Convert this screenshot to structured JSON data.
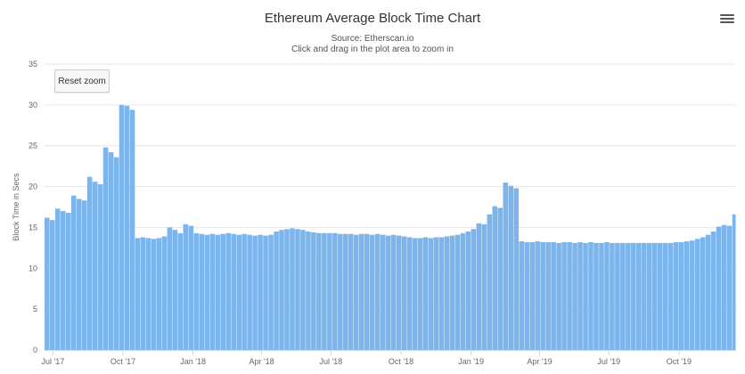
{
  "header": {
    "title": "Ethereum Average Block Time Chart",
    "source": "Source: Etherscan.io",
    "hint": "Click and drag in the plot area to zoom in"
  },
  "controls": {
    "reset_zoom_label": "Reset zoom",
    "menu_icon": "hamburger-menu-icon"
  },
  "colors": {
    "bar": "#7cb5ec",
    "grid": "#e6e6e6",
    "axis": "#ccd6eb"
  },
  "chart_data": {
    "type": "bar",
    "title": "Ethereum Average Block Time Chart",
    "subtitle": "Source: Etherscan.io",
    "ylabel": "Block Time in Secs",
    "xlabel": "",
    "ylim": [
      0,
      35
    ],
    "yticks": [
      0,
      5,
      10,
      15,
      20,
      25,
      30,
      35
    ],
    "x_start": "2017-06-20",
    "x_end": "2019-12-15",
    "x_ticks": [
      {
        "date": "2017-07-01",
        "label": "Jul '17"
      },
      {
        "date": "2017-10-01",
        "label": "Oct '17"
      },
      {
        "date": "2018-01-01",
        "label": "Jan '18"
      },
      {
        "date": "2018-04-01",
        "label": "Apr '18"
      },
      {
        "date": "2018-07-01",
        "label": "Jul '18"
      },
      {
        "date": "2018-10-01",
        "label": "Oct '18"
      },
      {
        "date": "2019-01-01",
        "label": "Jan '19"
      },
      {
        "date": "2019-04-01",
        "label": "Apr '19"
      },
      {
        "date": "2019-07-01",
        "label": "Jul '19"
      },
      {
        "date": "2019-10-01",
        "label": "Oct '19"
      }
    ],
    "grid": true,
    "legend": "none",
    "series": [
      {
        "values": [
          [
            "2017-06-20",
            16.2
          ],
          [
            "2017-06-27",
            15.9
          ],
          [
            "2017-07-04",
            17.3
          ],
          [
            "2017-07-11",
            17.0
          ],
          [
            "2017-07-18",
            16.8
          ],
          [
            "2017-07-25",
            18.9
          ],
          [
            "2017-08-01",
            18.5
          ],
          [
            "2017-08-08",
            18.3
          ],
          [
            "2017-08-15",
            21.2
          ],
          [
            "2017-08-22",
            20.6
          ],
          [
            "2017-08-29",
            20.3
          ],
          [
            "2017-09-05",
            24.8
          ],
          [
            "2017-09-12",
            24.2
          ],
          [
            "2017-09-19",
            23.6
          ],
          [
            "2017-09-26",
            30.0
          ],
          [
            "2017-10-03",
            29.9
          ],
          [
            "2017-10-10",
            29.4
          ],
          [
            "2017-10-17",
            13.7
          ],
          [
            "2017-10-24",
            13.8
          ],
          [
            "2017-10-31",
            13.7
          ],
          [
            "2017-11-07",
            13.6
          ],
          [
            "2017-11-14",
            13.7
          ],
          [
            "2017-11-21",
            13.9
          ],
          [
            "2017-11-28",
            15.0
          ],
          [
            "2017-12-05",
            14.7
          ],
          [
            "2017-12-12",
            14.3
          ],
          [
            "2017-12-19",
            15.4
          ],
          [
            "2017-12-26",
            15.2
          ],
          [
            "2018-01-02",
            14.3
          ],
          [
            "2018-01-09",
            14.2
          ],
          [
            "2018-01-16",
            14.1
          ],
          [
            "2018-01-23",
            14.2
          ],
          [
            "2018-01-30",
            14.1
          ],
          [
            "2018-02-06",
            14.2
          ],
          [
            "2018-02-13",
            14.3
          ],
          [
            "2018-02-20",
            14.2
          ],
          [
            "2018-02-27",
            14.1
          ],
          [
            "2018-03-06",
            14.2
          ],
          [
            "2018-03-13",
            14.1
          ],
          [
            "2018-03-20",
            14.0
          ],
          [
            "2018-03-27",
            14.1
          ],
          [
            "2018-04-03",
            14.0
          ],
          [
            "2018-04-10",
            14.1
          ],
          [
            "2018-04-17",
            14.5
          ],
          [
            "2018-04-24",
            14.7
          ],
          [
            "2018-05-01",
            14.8
          ],
          [
            "2018-05-08",
            14.9
          ],
          [
            "2018-05-15",
            14.8
          ],
          [
            "2018-05-22",
            14.7
          ],
          [
            "2018-05-29",
            14.5
          ],
          [
            "2018-06-05",
            14.4
          ],
          [
            "2018-06-12",
            14.3
          ],
          [
            "2018-06-19",
            14.3
          ],
          [
            "2018-06-26",
            14.3
          ],
          [
            "2018-07-03",
            14.3
          ],
          [
            "2018-07-10",
            14.2
          ],
          [
            "2018-07-17",
            14.2
          ],
          [
            "2018-07-24",
            14.2
          ],
          [
            "2018-07-31",
            14.1
          ],
          [
            "2018-08-07",
            14.2
          ],
          [
            "2018-08-14",
            14.2
          ],
          [
            "2018-08-21",
            14.1
          ],
          [
            "2018-08-28",
            14.2
          ],
          [
            "2018-09-04",
            14.1
          ],
          [
            "2018-09-11",
            14.0
          ],
          [
            "2018-09-18",
            14.1
          ],
          [
            "2018-09-25",
            14.0
          ],
          [
            "2018-10-02",
            13.9
          ],
          [
            "2018-10-09",
            13.8
          ],
          [
            "2018-10-16",
            13.7
          ],
          [
            "2018-10-23",
            13.7
          ],
          [
            "2018-10-30",
            13.8
          ],
          [
            "2018-11-06",
            13.7
          ],
          [
            "2018-11-13",
            13.8
          ],
          [
            "2018-11-20",
            13.8
          ],
          [
            "2018-11-27",
            13.9
          ],
          [
            "2018-12-04",
            14.0
          ],
          [
            "2018-12-11",
            14.1
          ],
          [
            "2018-12-18",
            14.3
          ],
          [
            "2018-12-25",
            14.5
          ],
          [
            "2019-01-01",
            14.8
          ],
          [
            "2019-01-08",
            15.5
          ],
          [
            "2019-01-15",
            15.4
          ],
          [
            "2019-01-22",
            16.6
          ],
          [
            "2019-01-29",
            17.6
          ],
          [
            "2019-02-05",
            17.4
          ],
          [
            "2019-02-12",
            20.5
          ],
          [
            "2019-02-19",
            20.1
          ],
          [
            "2019-02-26",
            19.8
          ],
          [
            "2019-03-05",
            13.3
          ],
          [
            "2019-03-12",
            13.2
          ],
          [
            "2019-03-19",
            13.2
          ],
          [
            "2019-03-26",
            13.3
          ],
          [
            "2019-04-02",
            13.2
          ],
          [
            "2019-04-09",
            13.2
          ],
          [
            "2019-04-16",
            13.2
          ],
          [
            "2019-04-23",
            13.1
          ],
          [
            "2019-04-30",
            13.2
          ],
          [
            "2019-05-07",
            13.2
          ],
          [
            "2019-05-14",
            13.1
          ],
          [
            "2019-05-21",
            13.2
          ],
          [
            "2019-05-28",
            13.1
          ],
          [
            "2019-06-04",
            13.2
          ],
          [
            "2019-06-11",
            13.1
          ],
          [
            "2019-06-18",
            13.1
          ],
          [
            "2019-06-25",
            13.2
          ],
          [
            "2019-07-02",
            13.1
          ],
          [
            "2019-07-09",
            13.1
          ],
          [
            "2019-07-16",
            13.1
          ],
          [
            "2019-07-23",
            13.1
          ],
          [
            "2019-07-30",
            13.1
          ],
          [
            "2019-08-06",
            13.1
          ],
          [
            "2019-08-13",
            13.1
          ],
          [
            "2019-08-20",
            13.1
          ],
          [
            "2019-08-27",
            13.1
          ],
          [
            "2019-09-03",
            13.1
          ],
          [
            "2019-09-10",
            13.1
          ],
          [
            "2019-09-17",
            13.1
          ],
          [
            "2019-09-24",
            13.2
          ],
          [
            "2019-10-01",
            13.2
          ],
          [
            "2019-10-08",
            13.3
          ],
          [
            "2019-10-15",
            13.4
          ],
          [
            "2019-10-22",
            13.6
          ],
          [
            "2019-10-29",
            13.8
          ],
          [
            "2019-11-05",
            14.1
          ],
          [
            "2019-11-12",
            14.5
          ],
          [
            "2019-11-19",
            15.1
          ],
          [
            "2019-11-26",
            15.3
          ],
          [
            "2019-12-03",
            15.2
          ],
          [
            "2019-12-10",
            16.6
          ]
        ]
      }
    ]
  }
}
